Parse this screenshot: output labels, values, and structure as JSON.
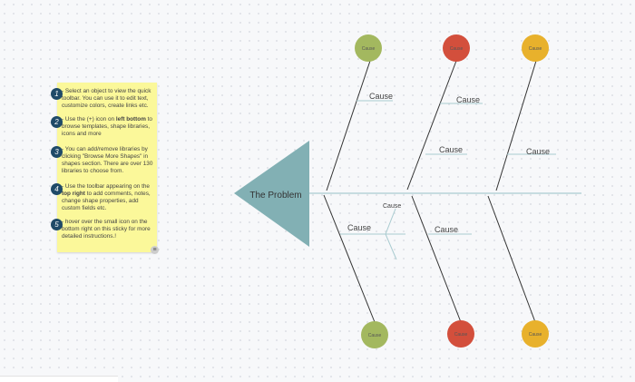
{
  "sticky": {
    "notes": [
      {
        "num": "1",
        "pre": "- Select an object to view the quick toolbar. You can use it to edit text, customize colors, create links etc.",
        "bold": "",
        "post": ""
      },
      {
        "num": "2",
        "pre": "- Use the (+) icon on ",
        "bold": "left bottom",
        "post": " to browse templates, shape libraries, icons and more"
      },
      {
        "num": "3",
        "pre": "- You can add/remove libraries by clicking \"Browse More Shapes\" in shapes section. There are over 130 libraries to choose from.",
        "bold": "",
        "post": ""
      },
      {
        "num": "4",
        "pre": "- Use the toolbar appearing on the ",
        "bold": "top right",
        "post": " to add comments, notes, change shape properties, add custom fields etc."
      },
      {
        "num": "5",
        "pre": "- hover over the small icon on the bottom right on this sticky for more detailed instructions.!",
        "bold": "",
        "post": ""
      }
    ],
    "icon": "list-icon"
  },
  "diagram": {
    "problem": "The Problem",
    "head_color": "#82b0b4",
    "spine_color": "#a9cbd0",
    "category_label": "Cause",
    "cause_label": "Cause",
    "sub_cause_label": "Cause",
    "colors": {
      "green": "#a3b85f",
      "red": "#d34f3c",
      "yellow": "#e8b12c"
    }
  }
}
